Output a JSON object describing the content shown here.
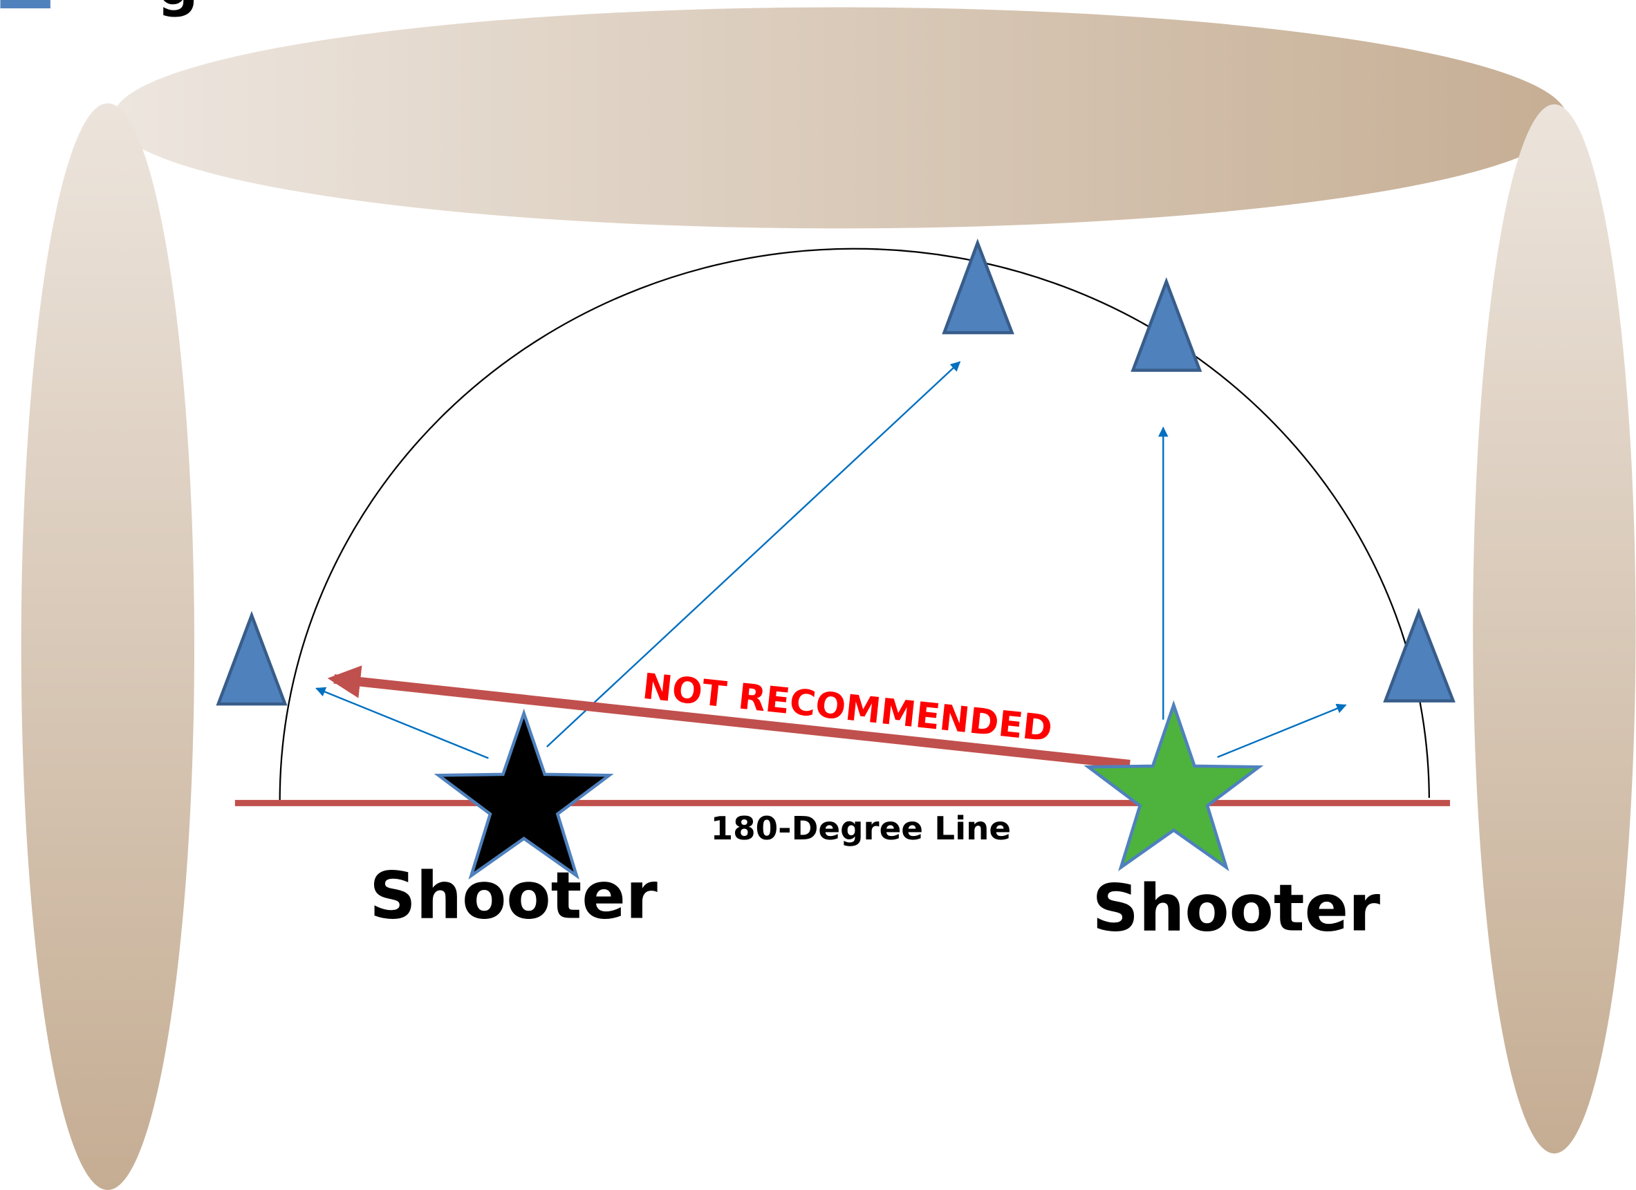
{
  "legend_fragment": "g",
  "annotation": "NOT RECOMMENDED",
  "line_label": "180-Degree Line",
  "shooters": [
    {
      "label": "Shooter"
    },
    {
      "label": "Shooter"
    }
  ]
}
